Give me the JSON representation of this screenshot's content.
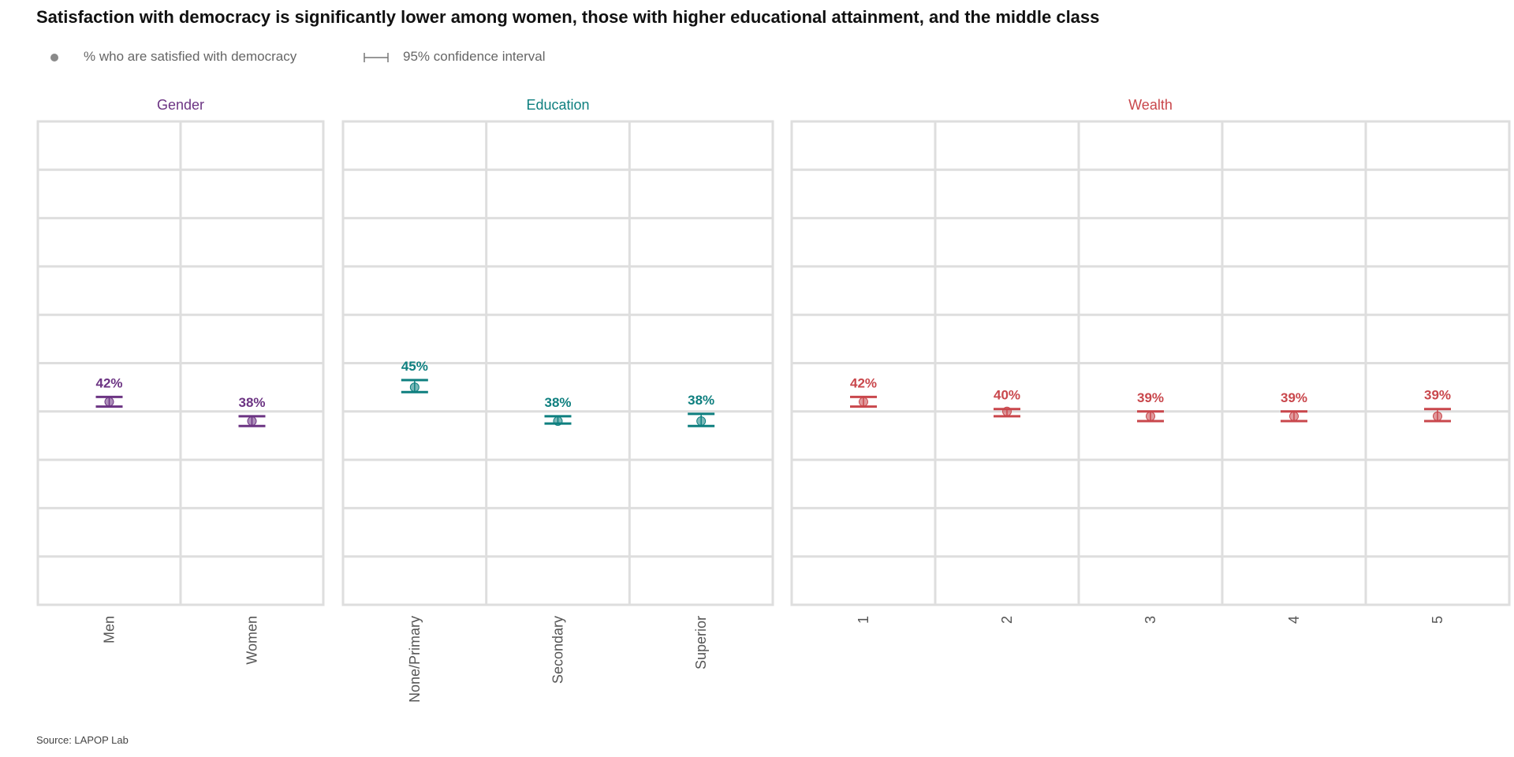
{
  "chart_data": {
    "type": "scatter",
    "title": "Satisfaction with democracy is significantly lower among women, those with higher educational attainment, and the middle class",
    "legend": {
      "point_label": "% who are satisfied with democracy",
      "ci_label": "95% confidence interval",
      "point_color": "#8a8a8a"
    },
    "ylim": [
      0,
      100
    ],
    "y_gridlines": [
      10,
      20,
      30,
      40,
      50,
      60,
      70,
      80,
      90
    ],
    "grid": true,
    "source": "Source: LAPOP Lab",
    "facets": [
      {
        "name": "Gender",
        "color": "#6c3483",
        "categories": [
          "Men",
          "Women"
        ],
        "values": [
          42,
          38
        ],
        "labels": [
          "42%",
          "38%"
        ],
        "ci_low": [
          41,
          37
        ],
        "ci_high": [
          43,
          39
        ]
      },
      {
        "name": "Education",
        "color": "#0e7f7f",
        "categories": [
          "None/Primary",
          "Secondary",
          "Superior"
        ],
        "values": [
          45,
          38,
          38
        ],
        "labels": [
          "45%",
          "38%",
          "38%"
        ],
        "ci_low": [
          44,
          37.5,
          37
        ],
        "ci_high": [
          46.5,
          39,
          39.5
        ]
      },
      {
        "name": "Wealth",
        "color": "#c9474c",
        "categories": [
          "1",
          "2",
          "3",
          "4",
          "5"
        ],
        "values": [
          42,
          40,
          39,
          39,
          39
        ],
        "labels": [
          "42%",
          "40%",
          "39%",
          "39%",
          "39%"
        ],
        "ci_low": [
          41,
          39,
          38,
          38,
          38
        ],
        "ci_high": [
          43,
          40.5,
          40,
          40,
          40.5
        ]
      }
    ]
  }
}
